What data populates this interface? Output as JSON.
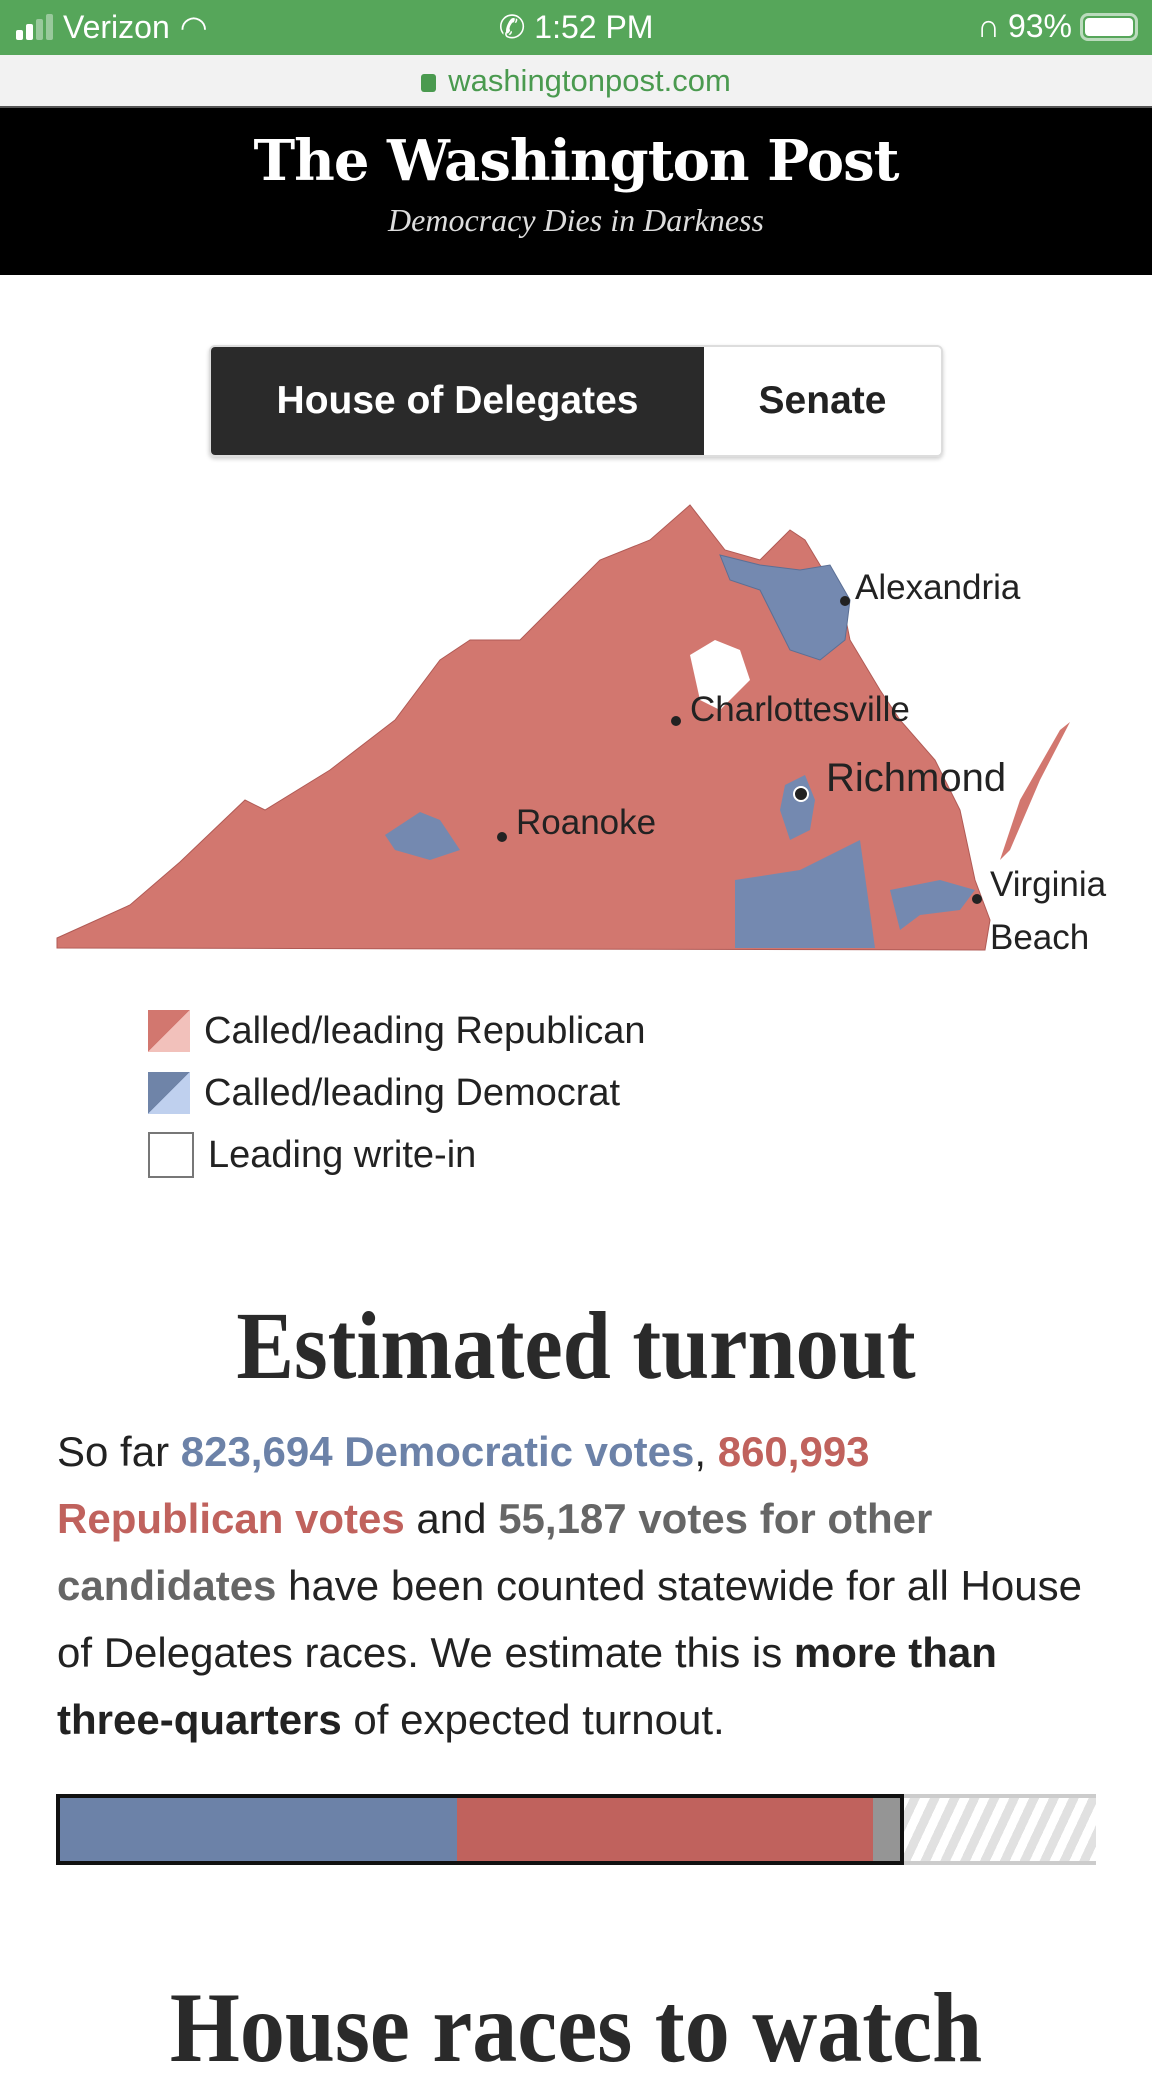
{
  "status_bar": {
    "carrier": "Verizon",
    "time": "1:52 PM",
    "battery": "93%",
    "icons": [
      "signal-icon",
      "wifi-icon",
      "phone-icon",
      "headphones-icon",
      "battery-icon"
    ]
  },
  "browser": {
    "url": "washingtonpost.com"
  },
  "header": {
    "logo": "The Washington Post",
    "tagline": "Democracy Dies in Darkness"
  },
  "toggle": {
    "options": [
      "House of Delegates",
      "Senate"
    ],
    "selected": "House of Delegates"
  },
  "map": {
    "cities": [
      "Alexandria",
      "Charlottesville",
      "Richmond",
      "Roanoke",
      "Virginia",
      "Beach"
    ]
  },
  "legend": {
    "items": [
      "Called/leading Republican",
      "Called/leading Democrat",
      "Leading write-in"
    ]
  },
  "turnout": {
    "title": "Estimated turnout",
    "p1": "So far ",
    "dem": "823,694 Democratic votes",
    "p2": ", ",
    "rep": "860,993 Republican votes",
    "p3": " and ",
    "other": "55,187 votes for other candidates",
    "p4": " have been counted statewide for all House of Delegates races. We estimate this is ",
    "estimate": "more than three-quarters",
    "p5": " of expected turnout.",
    "dem_votes": 823694,
    "rep_votes": 860993,
    "other_votes": 55187,
    "counted_fraction_of_expected": 0.815
  },
  "colors": {
    "dem": "#6c82a8",
    "rep": "#c0625d",
    "other": "#959595",
    "map_rep": "#d2776f",
    "map_dem": "#7489b0"
  },
  "next_section": {
    "title": "House races to watch"
  }
}
